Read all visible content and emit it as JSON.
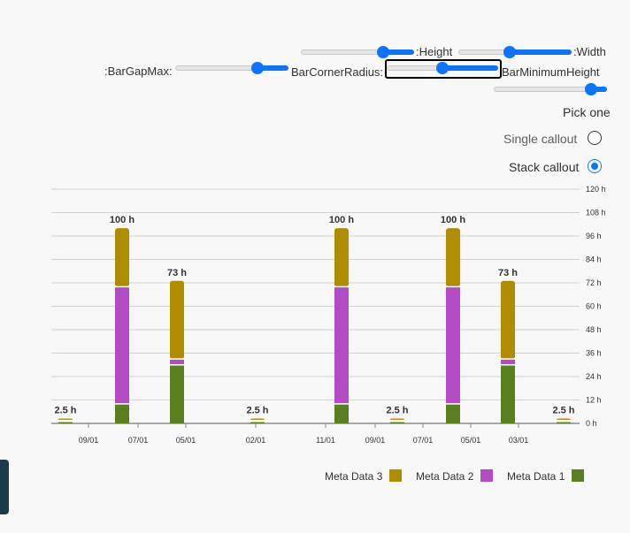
{
  "controls": {
    "height_label": ":Height",
    "width_label": ":Width",
    "bar_gap_max_label": ":BarGapMax:",
    "bar_corner_radius_label": "BarCornerRadius:",
    "bar_minimum_height_label": "BarMinimumHeight",
    "sliders": {
      "height": 0.75,
      "width": 0.45,
      "bar_gap_max": 0.75,
      "bar_corner_radius": 0.5,
      "bar_minimum_height": 0.9
    }
  },
  "callout": {
    "title": "Pick one",
    "options": [
      {
        "label": "Single callout",
        "selected": false
      },
      {
        "label": "Stack callout",
        "selected": true
      }
    ]
  },
  "colors": {
    "accent": "#0a74ff",
    "meta1": "#5a7f1e",
    "meta2": "#b24bc4",
    "meta3": "#b08d00"
  },
  "chart_data": {
    "type": "bar",
    "stacked": true,
    "y_ticks": [
      "0 h",
      "12 h",
      "24 h",
      "36 h",
      "48 h",
      "60 h",
      "72 h",
      "84 h",
      "96 h",
      "108 h",
      "120 h"
    ],
    "ylim": [
      0,
      120
    ],
    "x_tick_labels": [
      "09/01",
      "07/01",
      "05/01",
      "02/01",
      "11/01",
      "09/01",
      "07/01",
      "05/01",
      "03/01"
    ],
    "series": [
      {
        "name": "Meta Data 1",
        "values": [
          1,
          10,
          30,
          1,
          10,
          1,
          10,
          30,
          1
        ]
      },
      {
        "name": "Meta Data 2",
        "values": [
          0.5,
          60,
          3,
          0.5,
          60,
          0.5,
          60,
          3,
          0.5
        ]
      },
      {
        "name": "Meta Data 3",
        "values": [
          1,
          30,
          40,
          1,
          30,
          1,
          30,
          40,
          1
        ]
      }
    ],
    "bar_totals": [
      "2.5 h",
      "100 h",
      "73 h",
      "2.5 h",
      "100 h",
      "2.5 h",
      "100 h",
      "73 h",
      "2.5 h"
    ],
    "legend": [
      "Meta Data 3",
      "Meta Data 2",
      "Meta Data 1"
    ],
    "grid": true,
    "legend_position": "bottom-right"
  }
}
